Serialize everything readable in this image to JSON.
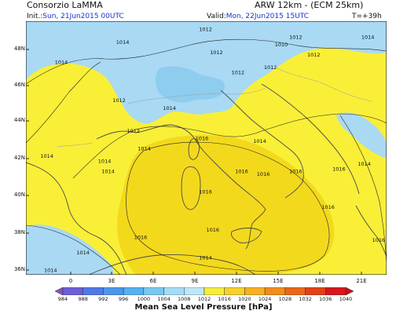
{
  "header": {
    "org": "Consorzio LaMMA",
    "model": "ARW 12km - (ECM 25km)",
    "init_label": "Init.:",
    "init_value": "Sun, 21Jun2015 00UTC",
    "valid_label": "Valid:",
    "valid_value": "Mon, 22Jun2015 15UTC",
    "lead_time": "T=+39h"
  },
  "map": {
    "lat_labels": [
      "48N",
      "46N",
      "44N",
      "42N",
      "40N",
      "38N",
      "36N"
    ],
    "lon_labels": [
      "0",
      "3E",
      "6E",
      "9E",
      "12E",
      "15E",
      "18E",
      "21E"
    ],
    "isobar_labels": [
      {
        "text": "1012",
        "lx": 0.48,
        "ly": 0.03
      },
      {
        "text": "1012",
        "lx": 0.73,
        "ly": 0.06
      },
      {
        "text": "1014",
        "lx": 0.25,
        "ly": 0.08
      },
      {
        "text": "1012",
        "lx": 0.51,
        "ly": 0.12
      },
      {
        "text": "1010",
        "lx": 0.69,
        "ly": 0.09
      },
      {
        "text": "1012",
        "lx": 0.78,
        "ly": 0.13
      },
      {
        "text": "1014",
        "lx": 0.93,
        "ly": 0.06
      },
      {
        "text": "1014",
        "lx": 0.08,
        "ly": 0.16
      },
      {
        "text": "1012",
        "lx": 0.57,
        "ly": 0.2
      },
      {
        "text": "1012",
        "lx": 0.66,
        "ly": 0.18
      },
      {
        "text": "1012",
        "lx": 0.24,
        "ly": 0.31
      },
      {
        "text": "1014",
        "lx": 0.38,
        "ly": 0.34
      },
      {
        "text": "1012",
        "lx": 0.28,
        "ly": 0.43
      },
      {
        "text": "1014",
        "lx": 0.31,
        "ly": 0.5
      },
      {
        "text": "1016",
        "lx": 0.47,
        "ly": 0.46
      },
      {
        "text": "1014",
        "lx": 0.63,
        "ly": 0.47
      },
      {
        "text": "1014",
        "lx": 0.2,
        "ly": 0.55
      },
      {
        "text": "1014",
        "lx": 0.04,
        "ly": 0.53
      },
      {
        "text": "1014",
        "lx": 0.21,
        "ly": 0.59
      },
      {
        "text": "1016",
        "lx": 0.58,
        "ly": 0.59
      },
      {
        "text": "1016",
        "lx": 0.64,
        "ly": 0.6
      },
      {
        "text": "1016",
        "lx": 0.73,
        "ly": 0.59
      },
      {
        "text": "1016",
        "lx": 0.85,
        "ly": 0.58
      },
      {
        "text": "1014",
        "lx": 0.92,
        "ly": 0.56
      },
      {
        "text": "1016",
        "lx": 0.48,
        "ly": 0.67
      },
      {
        "text": "1016",
        "lx": 0.82,
        "ly": 0.73
      },
      {
        "text": "1016",
        "lx": 0.3,
        "ly": 0.85
      },
      {
        "text": "1016",
        "lx": 0.5,
        "ly": 0.82
      },
      {
        "text": "1014",
        "lx": 0.14,
        "ly": 0.91
      },
      {
        "text": "1014",
        "lx": 0.05,
        "ly": 0.98
      },
      {
        "text": "1014",
        "lx": 0.48,
        "ly": 0.93
      },
      {
        "text": "1016",
        "lx": 0.96,
        "ly": 0.86
      }
    ]
  },
  "colorbar": {
    "labels": [
      "984",
      "988",
      "992",
      "996",
      "1000",
      "1004",
      "1008",
      "1012",
      "1016",
      "1020",
      "1024",
      "1028",
      "1032",
      "1036",
      "1040"
    ],
    "colors": [
      "#8a4fc8",
      "#6a5fd8",
      "#4f79e6",
      "#4b96ec",
      "#55b2f0",
      "#78c8f4",
      "#a4dcf7",
      "#bfe7fb",
      "#f6ec3c",
      "#f6d02a",
      "#f6b020",
      "#f28c1c",
      "#ec6619",
      "#e34018",
      "#d8161c",
      "#c8101a"
    ],
    "title": "Mean Sea Level Pressure [hPa]"
  },
  "colors": {
    "sea_mid": "#f3d91c",
    "sea_light": "#f9ef37",
    "land_low": "#a9d9f3",
    "land_lower": "#8fcdef",
    "coast": "#4a4a4a",
    "border": "#9a9aa0"
  }
}
